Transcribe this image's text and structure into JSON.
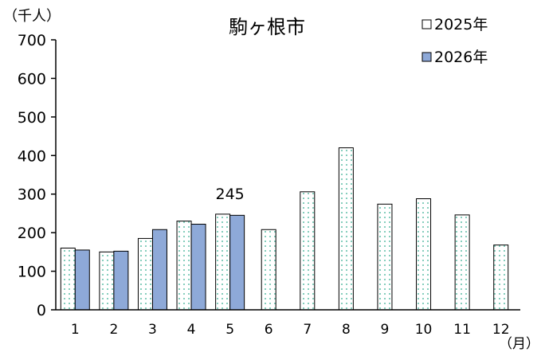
{
  "chart_data": {
    "type": "bar",
    "title": "駒ヶ根市",
    "y_unit_label": "（千人）",
    "x_unit_label": "（月）",
    "categories": [
      "1",
      "2",
      "3",
      "4",
      "5",
      "6",
      "7",
      "8",
      "9",
      "10",
      "11",
      "12"
    ],
    "ylim": [
      0,
      700
    ],
    "yticks": [
      0,
      100,
      200,
      300,
      400,
      500,
      600,
      700
    ],
    "grid": false,
    "legend_position": "top-right",
    "series": [
      {
        "name": "2025年",
        "style": "dotted",
        "fill": "#ffffff",
        "dot_color": "#5fbfa8",
        "values": [
          160,
          150,
          185,
          230,
          248,
          208,
          306,
          420,
          274,
          288,
          246,
          168
        ]
      },
      {
        "name": "2026年",
        "style": "solid",
        "fill": "#8ea9d8",
        "values": [
          155,
          152,
          208,
          222,
          245,
          null,
          null,
          null,
          null,
          null,
          null,
          null
        ]
      }
    ],
    "annotations": [
      {
        "text": "245",
        "category": "5",
        "series": "2026年"
      }
    ]
  }
}
